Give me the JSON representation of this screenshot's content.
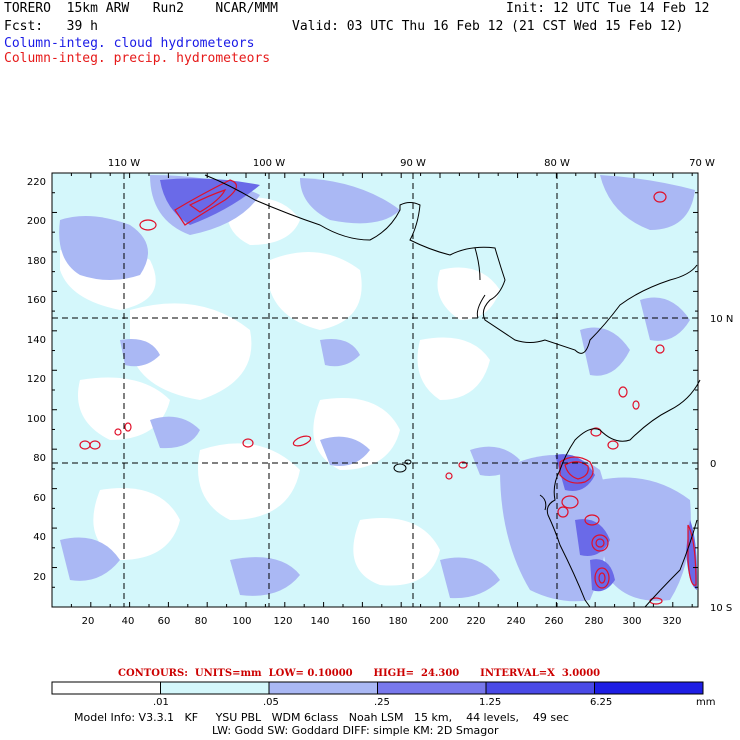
{
  "header": {
    "model": "TORERO  15km ARW   Run2    NCAR/MMM",
    "init": "Init: 12 UTC Tue 14 Feb 12",
    "fcst": "Fcst:   39 h",
    "valid": "Valid: 03 UTC Thu 16 Feb 12 (21 CST Wed 15 Feb 12)",
    "field1": "Column-integ. cloud hydrometeors",
    "field2": "Column-integ. precip. hydrometeors"
  },
  "map": {
    "lon_labels": [
      "110 W",
      "100 W",
      "90 W",
      "80 W",
      "70 W"
    ],
    "lat_labels": [
      "10 N",
      "0",
      "10 S"
    ],
    "y_ticks": [
      "220",
      "200",
      "180",
      "160",
      "140",
      "120",
      "100",
      "80",
      "60",
      "40",
      "20"
    ],
    "x_ticks": [
      "20",
      "40",
      "60",
      "80",
      "100",
      "120",
      "140",
      "160",
      "180",
      "200",
      "220",
      "240",
      "260",
      "280",
      "300",
      "320"
    ]
  },
  "contours": {
    "text": "CONTOURS:  UNITS=mm  LOW= 0.10000      HIGH=  24.300      INTERVAL=X  3.0000"
  },
  "legend": {
    "labels": [
      ".01",
      ".05",
      ".25",
      "1.25",
      "6.25"
    ],
    "unit": "mm",
    "colors": [
      "#ffffff",
      "#d4f7fb",
      "#aab8f4",
      "#7878ec",
      "#4a4ae6",
      "#1e1ee4"
    ]
  },
  "model_info": {
    "line1": "Model Info: V3.3.1   KF     YSU PBL   WDM 6class   Noah LSM   15 km,    44 levels,    49 sec",
    "line2": "LW: Godd SW: Goddard DIFF: simple KM: 2D Smagor"
  },
  "colors": {
    "coast": "#000000",
    "precip_contour": "#e0102a",
    "grid": "#000000"
  }
}
